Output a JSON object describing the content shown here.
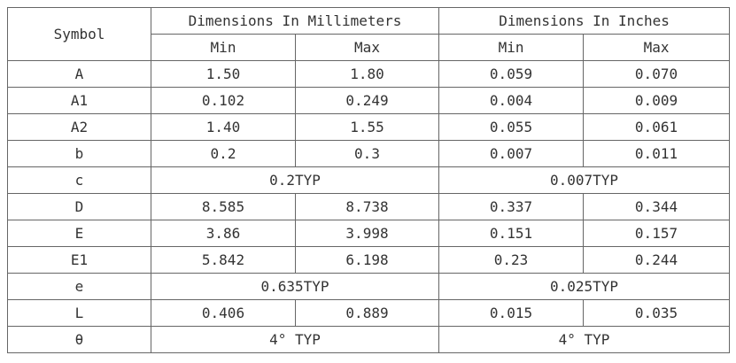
{
  "table": {
    "header": {
      "symbol": "Symbol",
      "mm": "Dimensions In Millimeters",
      "in": "Dimensions In Inches",
      "min_mm": "Min",
      "max_mm": "Max",
      "min_in": "Min",
      "max_in": "Max"
    },
    "rows": [
      {
        "symbol": "A",
        "values": [
          "1.50",
          "1.80",
          "0.059",
          "0.070"
        ]
      },
      {
        "symbol": "A1",
        "values": [
          "0.102",
          "0.249",
          "0.004",
          "0.009"
        ]
      },
      {
        "symbol": "A2",
        "values": [
          "1.40",
          "1.55",
          "0.055",
          "0.061"
        ]
      },
      {
        "symbol": "b",
        "values": [
          "0.2",
          "0.3",
          "0.007",
          "0.011"
        ]
      },
      {
        "symbol": "c",
        "values": [
          "0.2TYP",
          "0.007TYP"
        ]
      },
      {
        "symbol": "D",
        "values": [
          "8.585",
          "8.738",
          "0.337",
          "0.344"
        ]
      },
      {
        "symbol": "E",
        "values": [
          "3.86",
          "3.998",
          "0.151",
          "0.157"
        ]
      },
      {
        "symbol": "E1",
        "values": [
          "5.842",
          "6.198",
          "0.23",
          "0.244"
        ]
      },
      {
        "symbol": "e",
        "values": [
          "0.635TYP",
          "0.025TYP"
        ]
      },
      {
        "symbol": "L",
        "values": [
          "0.406",
          "0.889",
          "0.015",
          "0.035"
        ]
      },
      {
        "symbol": "θ",
        "values": [
          "4° TYP",
          "4° TYP"
        ]
      }
    ]
  }
}
